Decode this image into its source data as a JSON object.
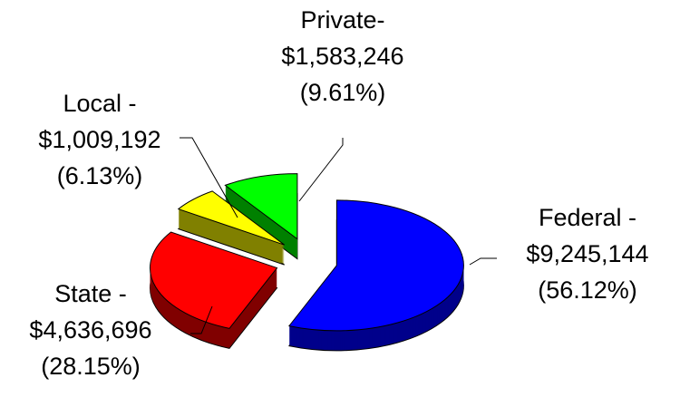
{
  "chart_data": {
    "type": "pie",
    "categories": [
      "Federal -",
      "State -",
      "Local -",
      "Private-"
    ],
    "values": [
      9245144,
      4636696,
      1009192,
      1583246
    ],
    "value_labels": [
      "$9,245,144",
      "$4,636,696",
      "$1,009,192",
      "$1,583,246"
    ],
    "percents": [
      56.12,
      28.15,
      6.13,
      9.61
    ],
    "percent_labels": [
      "(56.12%)",
      "(28.15%)",
      "(6.13%)",
      "(9.61%)"
    ],
    "colors": [
      "#0000ff",
      "#ff0000",
      "#ffff00",
      "#00ff00"
    ],
    "side_colors": [
      "#00008b",
      "#800000",
      "#808000",
      "#008000"
    ]
  }
}
